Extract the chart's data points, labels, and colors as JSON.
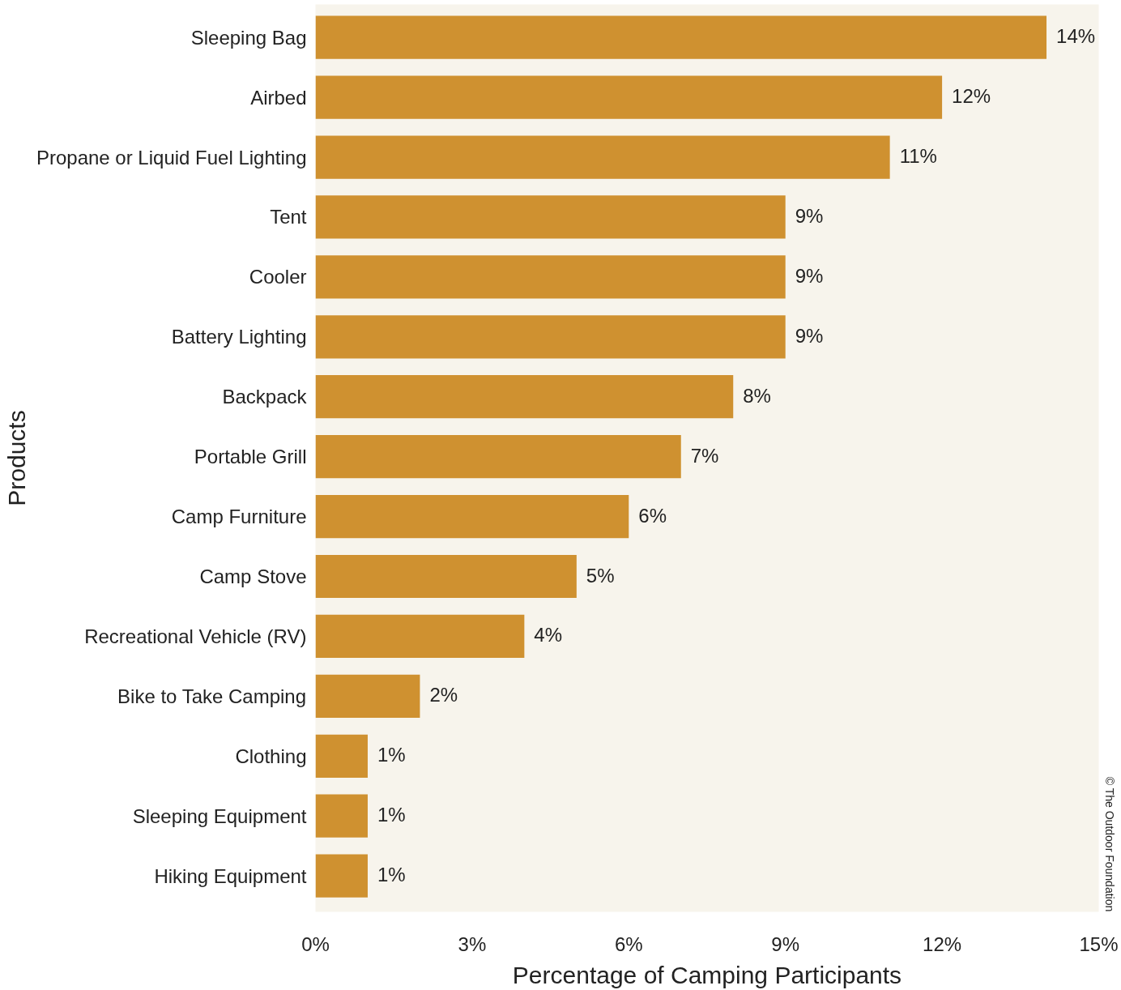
{
  "chart_data": {
    "type": "bar",
    "orientation": "horizontal",
    "xlabel": "Percentage of Camping Participants",
    "ylabel": "Products",
    "categories": [
      "Sleeping Bag",
      "Airbed",
      "Propane or Liquid Fuel Lighting",
      "Tent",
      "Cooler",
      "Battery Lighting",
      "Backpack",
      "Portable Grill",
      "Camp Furniture",
      "Camp Stove",
      "Recreational Vehicle (RV)",
      "Bike to Take Camping",
      "Clothing",
      "Sleeping Equipment",
      "Hiking Equipment"
    ],
    "values": [
      14,
      12,
      11,
      9,
      9,
      9,
      8,
      7,
      6,
      5,
      4,
      2,
      1,
      1,
      1
    ],
    "value_labels": [
      "14%",
      "12%",
      "11%",
      "9%",
      "9%",
      "9%",
      "8%",
      "7%",
      "6%",
      "5%",
      "4%",
      "2%",
      "1%",
      "1%",
      "1%"
    ],
    "color": "#cf9130",
    "xlim": [
      0,
      15
    ],
    "xticks": [
      {
        "value": 0,
        "label": "0%"
      },
      {
        "value": 3,
        "label": "3%"
      },
      {
        "value": 6,
        "label": "6%"
      },
      {
        "value": 9,
        "label": "9%"
      },
      {
        "value": 12,
        "label": "12%"
      },
      {
        "value": 15,
        "label": "15%"
      }
    ],
    "grid": false,
    "annotations": [
      "© The Outdoor Foundation"
    ]
  }
}
